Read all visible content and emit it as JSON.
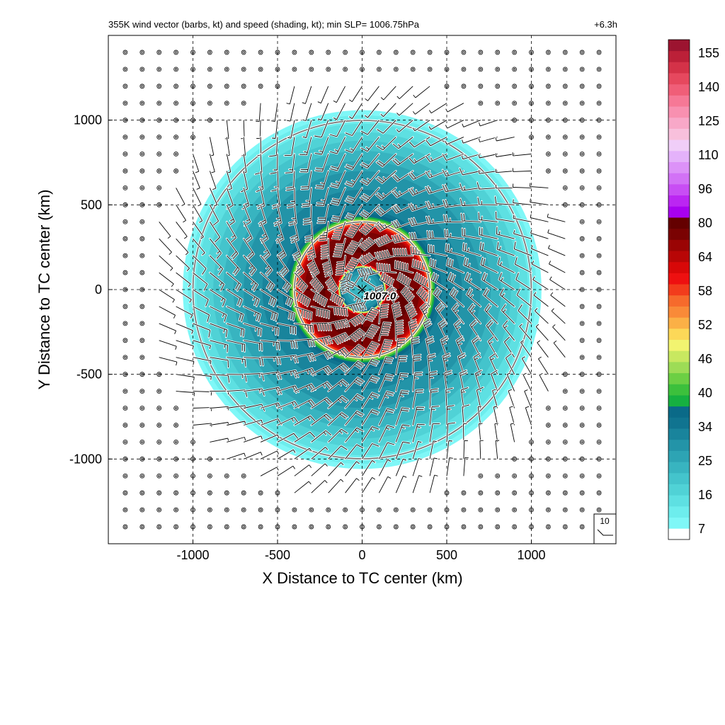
{
  "chart_data": {
    "type": "heatmap",
    "title": "355K wind vector (barbs, kt) and speed (shading, kt); min SLP= 1006.75hPa",
    "time_label": "+6.3h",
    "xlabel": "X Distance to TC center (km)",
    "ylabel": "Y Distance to TC center (km)",
    "xlim": [
      -1500,
      1500
    ],
    "ylim": [
      -1500,
      1500
    ],
    "x_ticks": [
      -1000,
      -500,
      0,
      500,
      1000
    ],
    "y_ticks": [
      -1000,
      -500,
      0,
      500,
      1000
    ],
    "x_tick_labels": [
      "-1000",
      "-500",
      "0",
      "500",
      "1000"
    ],
    "y_tick_labels": [
      "-1000",
      "-500",
      "0",
      "500",
      "1000"
    ],
    "grid": true,
    "center_marker_label": "1007.0",
    "range_rings_km": [
      400,
      1000
    ],
    "barb_reference_label": "10",
    "colorbar": {
      "levels": [
        7,
        10,
        13,
        16,
        19,
        22,
        25,
        28,
        31,
        34,
        37,
        40,
        43,
        46,
        49,
        52,
        55,
        58,
        61,
        64,
        68,
        72,
        76,
        80,
        84,
        88,
        92,
        96,
        100,
        104,
        108,
        110,
        115,
        120,
        125,
        130,
        135,
        140,
        145,
        150,
        155,
        160
      ],
      "tick_labels": [
        "7",
        "16",
        "25",
        "34",
        "40",
        "46",
        "52",
        "58",
        "64",
        "80",
        "96",
        "110",
        "125",
        "140",
        "155"
      ],
      "colors": [
        "#ffffff",
        "#7ff7f7",
        "#6deded",
        "#5ee0e2",
        "#50d2d6",
        "#44c4cc",
        "#38b4c0",
        "#2da4b4",
        "#2394a8",
        "#19849c",
        "#107490",
        "#0a6a88",
        "#16b040",
        "#3cc03c",
        "#6ccf44",
        "#9ddc56",
        "#c8e860",
        "#f2f470",
        "#fcd858",
        "#fbb046",
        "#f98a38",
        "#f66a2c",
        "#f23c1c",
        "#ee1010",
        "#d80808",
        "#b80606",
        "#9a0404",
        "#7a0202",
        "#640000",
        "#a800f0",
        "#bb26f2",
        "#c84ef4",
        "#d272f6",
        "#dc92f8",
        "#e4b2fa",
        "#f0cef8",
        "#f8c0dc",
        "#f8a8c8",
        "#f890b0",
        "#f67896",
        "#f05e78",
        "#e6485e",
        "#d43248",
        "#bc2038",
        "#9c1430"
      ]
    },
    "rings_km_by_speed": [
      {
        "r": 0,
        "speed": 20
      },
      {
        "r": 60,
        "speed": 24
      },
      {
        "r": 110,
        "speed": 31
      },
      {
        "r": 130,
        "speed": 42
      },
      {
        "r": 150,
        "speed": 88
      },
      {
        "r": 250,
        "speed": 100
      },
      {
        "r": 360,
        "speed": 90
      },
      {
        "r": 400,
        "speed": 64
      },
      {
        "r": 420,
        "speed": 42
      },
      {
        "r": 470,
        "speed": 34
      },
      {
        "r": 700,
        "speed": 28
      },
      {
        "r": 900,
        "speed": 18
      },
      {
        "r": 1050,
        "speed": 9
      },
      {
        "r": 1080,
        "speed": 0
      }
    ]
  }
}
